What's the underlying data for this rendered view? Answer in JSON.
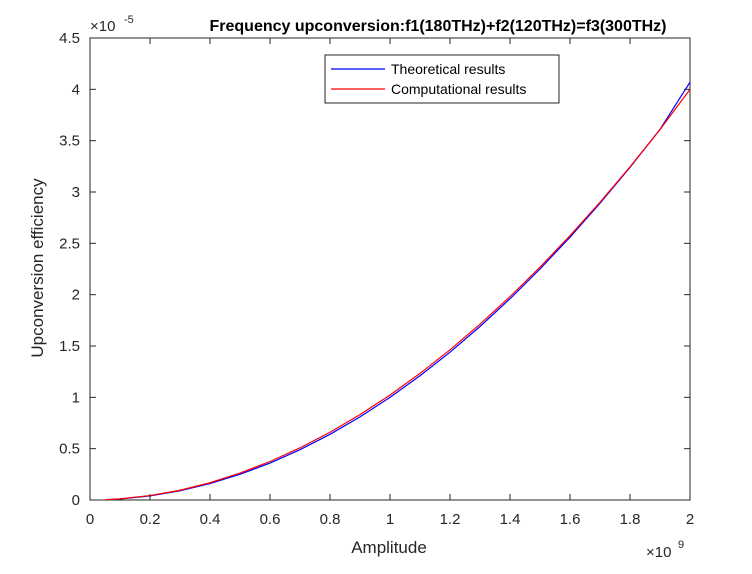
{
  "chart_data": {
    "type": "line",
    "title": "Frequency upconversion:f1(180THz)+f2(120THz)=f3(300THz)",
    "xlabel": "Amplitude",
    "ylabel": "Upconversion efficiency",
    "x_multiplier": "×10",
    "x_exponent": "9",
    "y_multiplier": "×10",
    "y_exponent": "-5",
    "xlim": [
      0,
      2
    ],
    "ylim": [
      0,
      4.5
    ],
    "x_ticks": [
      "0",
      "0.2",
      "0.4",
      "0.6",
      "0.8",
      "1",
      "1.2",
      "1.4",
      "1.6",
      "1.8",
      "2"
    ],
    "y_ticks": [
      "0",
      "0.5",
      "1",
      "1.5",
      "2",
      "2.5",
      "3",
      "3.5",
      "4",
      "4.5"
    ],
    "legend_position": "top-right",
    "x": [
      0.05,
      0.1,
      0.2,
      0.3,
      0.4,
      0.5,
      0.6,
      0.7,
      0.8,
      0.9,
      1.0,
      1.1,
      1.2,
      1.3,
      1.4,
      1.5,
      1.6,
      1.7,
      1.8,
      1.9,
      2.0
    ],
    "series": [
      {
        "name": "Theoretical results",
        "color": "#0000ff",
        "values": [
          0.0025,
          0.01,
          0.04,
          0.09,
          0.16,
          0.25,
          0.36,
          0.49,
          0.64,
          0.81,
          1.0,
          1.21,
          1.44,
          1.69,
          1.96,
          2.25,
          2.56,
          2.89,
          3.24,
          3.61,
          4.07
        ]
      },
      {
        "name": "Computational results",
        "color": "#ff0000",
        "values": [
          0.003,
          0.011,
          0.043,
          0.095,
          0.168,
          0.262,
          0.375,
          0.508,
          0.66,
          0.832,
          1.022,
          1.233,
          1.463,
          1.712,
          1.981,
          2.268,
          2.575,
          2.9,
          3.245,
          3.608,
          4.0
        ]
      }
    ],
    "grid": false
  }
}
